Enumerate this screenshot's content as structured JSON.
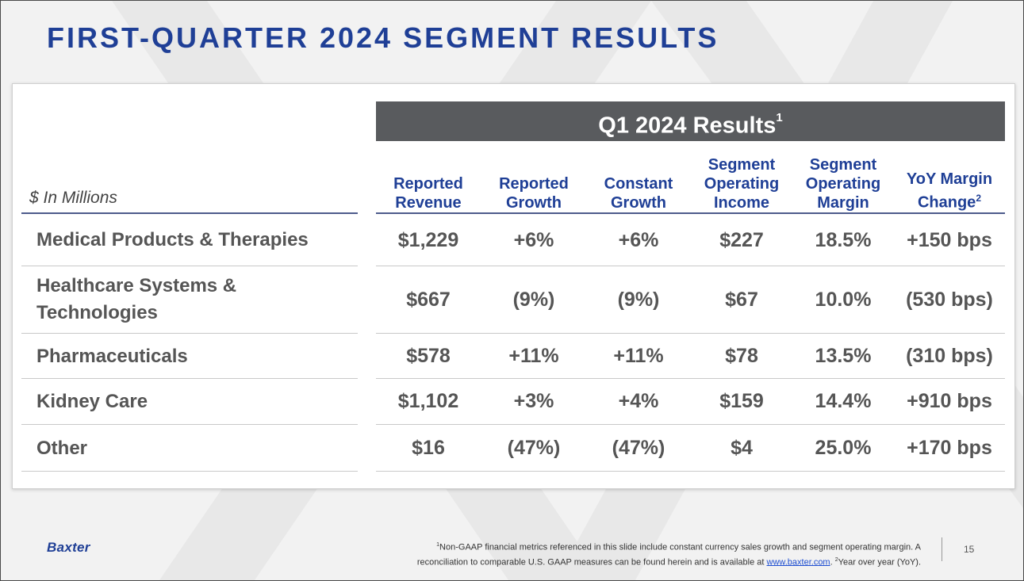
{
  "title": "FIRST-QUARTER 2024 SEGMENT RESULTS",
  "band": {
    "label": "Q1 2024 Results",
    "sup": "1"
  },
  "unit_label": "$ In Millions",
  "columns": [
    {
      "label": "Reported\nRevenue",
      "sup": ""
    },
    {
      "label": "Reported\nGrowth",
      "sup": ""
    },
    {
      "label": "Constant\nGrowth",
      "sup": ""
    },
    {
      "label": "Segment\nOperating\nIncome",
      "sup": ""
    },
    {
      "label": "Segment\nOperating\nMargin",
      "sup": ""
    },
    {
      "label": "YoY Margin\nChange",
      "sup": "2"
    }
  ],
  "rows": [
    {
      "label": "Medical Products & Therapies",
      "values": [
        "$1,229",
        "+6%",
        "+6%",
        "$227",
        "18.5%",
        "+150 bps"
      ]
    },
    {
      "label": "Healthcare Systems &\nTechnologies",
      "values": [
        "$667",
        "(9%)",
        "(9%)",
        "$67",
        "10.0%",
        "(530 bps)"
      ]
    },
    {
      "label": "Pharmaceuticals",
      "values": [
        "$578",
        "+11%",
        "+11%",
        "$78",
        "13.5%",
        "(310 bps)"
      ]
    },
    {
      "label": "Kidney Care",
      "values": [
        "$1,102",
        "+3%",
        "+4%",
        "$159",
        "14.4%",
        "+910 bps"
      ]
    },
    {
      "label": "Other",
      "values": [
        "$16",
        "(47%)",
        "(47%)",
        "$4",
        "25.0%",
        "+170 bps"
      ]
    }
  ],
  "footer": {
    "logo": "Baxter",
    "fn_sup1": "1",
    "fn_text1": "Non-GAAP financial metrics referenced in this slide include constant currency sales growth and segment operating margin. A",
    "fn_text2": "reconciliation to comparable U.S. GAAP measures can be found herein and is available at",
    "fn_link": "www.baxter.com",
    "fn_sep": ".",
    "fn_sup2": "2",
    "fn_text3": "Year over year (YoY).",
    "page": "15"
  },
  "colors": {
    "title": "#1f3f96",
    "band": "#595b5e",
    "body_text": "#555555"
  }
}
